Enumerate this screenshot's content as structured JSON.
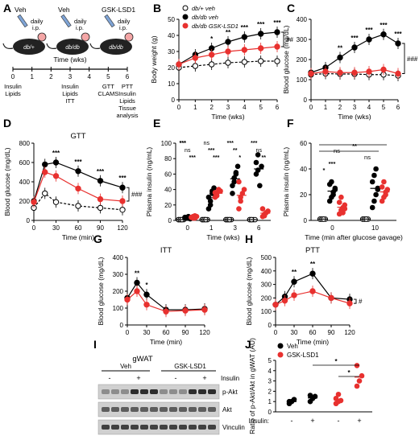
{
  "figure": {
    "panel_letters": [
      "A",
      "B",
      "C",
      "D",
      "E",
      "F",
      "G",
      "H",
      "I",
      "J"
    ],
    "colors": {
      "black": "#000000",
      "red": "#e8312f",
      "open": "#ffffff",
      "grey": "#888888"
    }
  },
  "panelA": {
    "mice": [
      {
        "label_top": "Veh",
        "injection": "daily i.p.",
        "body_label": "db/+"
      },
      {
        "label_top": "Veh",
        "injection": "daily i.p.",
        "body_label": "db/db"
      },
      {
        "label_top": "GSK-LSD1",
        "injection": "daily i.p.",
        "body_label": "db/db"
      }
    ],
    "timeline_title": "Time (wks)",
    "ticks": [
      "0",
      "1",
      "2",
      "3",
      "4",
      "5",
      "6"
    ],
    "events": [
      {
        "week": "0",
        "lines": [
          "Insulin",
          "Lipids"
        ]
      },
      {
        "week": "3",
        "lines": [
          "Insulin",
          "Lipids",
          "ITT"
        ]
      },
      {
        "week": "5",
        "lines": [
          "GTT",
          "CLAMS"
        ]
      },
      {
        "week": "6",
        "lines": [
          "PTT",
          "Insulin",
          "Lipids",
          "Tissue",
          "analysis"
        ]
      }
    ]
  },
  "chart_data": [
    {
      "panel": "B",
      "type": "line",
      "xlabel": "Time (wks)",
      "ylabel": "Body weight (g)",
      "xlim": [
        0,
        6
      ],
      "ylim": [
        0,
        50
      ],
      "xticks": [
        "0",
        "1",
        "2",
        "3",
        "4",
        "5",
        "6"
      ],
      "yticks": [
        "0",
        "10",
        "20",
        "30",
        "40",
        "50"
      ],
      "x": [
        0,
        1,
        2,
        3,
        4,
        5,
        6
      ],
      "legend": [
        "db/+ veh",
        "db/db veh",
        "db/db GSK-LSD1"
      ],
      "series": [
        {
          "name": "db/+ veh",
          "style": "open",
          "values": [
            20,
            21,
            22,
            23,
            23.5,
            24,
            24
          ]
        },
        {
          "name": "db/db veh",
          "style": "black",
          "values": [
            22,
            28,
            32,
            36,
            39,
            41,
            42
          ]
        },
        {
          "name": "db/db GSK-LSD1",
          "style": "red",
          "values": [
            22,
            26,
            28,
            30,
            31,
            32,
            33
          ]
        }
      ],
      "annotations": {
        "stars": [
          "*",
          "**",
          "***",
          "***",
          "***"
        ],
        "stars_x": [
          2,
          3,
          4,
          5,
          6
        ],
        "bracket": "##"
      }
    },
    {
      "panel": "C",
      "type": "line",
      "xlabel": "Time (wks)",
      "ylabel": "Blood glucose (mg/dL)",
      "xlim": [
        0,
        6
      ],
      "ylim": [
        0,
        400
      ],
      "xticks": [
        "0",
        "1",
        "2",
        "3",
        "4",
        "5",
        "6"
      ],
      "yticks": [
        "0",
        "100",
        "200",
        "300",
        "400"
      ],
      "x": [
        0,
        1,
        2,
        3,
        4,
        5,
        6
      ],
      "series": [
        {
          "style": "open",
          "values": [
            125,
            130,
            128,
            128,
            125,
            125,
            120
          ]
        },
        {
          "style": "black",
          "values": [
            135,
            160,
            210,
            260,
            300,
            325,
            280
          ]
        },
        {
          "style": "red",
          "values": [
            130,
            140,
            135,
            135,
            140,
            150,
            130
          ]
        }
      ],
      "annotations": {
        "stars": [
          "**",
          "***",
          "***",
          "***",
          "***"
        ],
        "stars_x": [
          2,
          3,
          4,
          5,
          6
        ],
        "bracket": "###"
      }
    },
    {
      "panel": "D",
      "type": "line",
      "title": "GTT",
      "xlabel": "Time (min)",
      "ylabel": "Blood glucose (mg/dL)",
      "xlim": [
        0,
        120
      ],
      "ylim": [
        0,
        800
      ],
      "xticks": [
        "0",
        "30",
        "60",
        "90",
        "120"
      ],
      "yticks": [
        "0",
        "200",
        "400",
        "600",
        "800"
      ],
      "x": [
        0,
        15,
        30,
        60,
        90,
        120
      ],
      "series": [
        {
          "style": "open",
          "values": [
            130,
            280,
            190,
            150,
            130,
            110
          ]
        },
        {
          "style": "black",
          "values": [
            200,
            580,
            600,
            510,
            410,
            340
          ]
        },
        {
          "style": "red",
          "values": [
            190,
            500,
            460,
            330,
            220,
            200
          ]
        }
      ],
      "annotations": {
        "stars": [
          "***",
          "***",
          "***",
          "***"
        ],
        "stars_x": [
          30,
          60,
          90,
          120
        ],
        "bracket": "###"
      }
    },
    {
      "panel": "E",
      "type": "scatter",
      "xlabel": "Time (wks)",
      "ylabel": "Plasma insulin (ng/mL)",
      "ylim": [
        0,
        100
      ],
      "yticks": [
        "0",
        "20",
        "40",
        "60",
        "80",
        "100"
      ],
      "categories": [
        "0",
        "1",
        "3",
        "6"
      ],
      "groups": [
        {
          "style": "open",
          "values": [
            [
              1,
              1,
              1,
              1,
              1,
              1,
              1
            ],
            [
              1,
              1,
              1,
              1,
              1,
              1,
              1
            ],
            [
              1,
              1,
              1,
              1,
              1,
              1,
              1
            ],
            [
              1,
              1,
              1,
              1,
              1,
              1
            ]
          ]
        },
        {
          "style": "black",
          "values": [
            [
              3,
              4,
              5,
              2,
              4,
              3,
              3
            ],
            [
              15,
              25,
              35,
              42,
              30,
              20,
              38
            ],
            [
              45,
              55,
              60,
              70,
              35,
              50,
              62
            ],
            [
              60,
              85,
              45,
              70,
              75,
              65
            ]
          ]
        },
        {
          "style": "red",
          "values": [
            [
              4,
              3,
              6,
              5,
              4,
              5,
              3
            ],
            [
              30,
              35,
              40,
              38,
              36,
              32
            ],
            [
              15,
              25,
              35,
              40,
              50,
              30
            ],
            [
              5,
              8,
              10,
              12,
              15,
              6
            ]
          ]
        }
      ],
      "annotations": {
        "labels": [
          "***",
          "ns",
          "***",
          "***",
          "***",
          "***",
          "ns",
          "**",
          "*",
          "***",
          "ns",
          "**",
          "***"
        ]
      }
    },
    {
      "panel": "F",
      "type": "scatter",
      "xlabel": "Time (min after glucose gavage)",
      "ylabel": "Plasma insulin (ng/mL)",
      "ylim": [
        0,
        60
      ],
      "yticks": [
        "0",
        "20",
        "40",
        "60"
      ],
      "categories": [
        "0",
        "10"
      ],
      "groups": [
        {
          "style": "open",
          "values": [
            [
              1,
              1,
              1,
              1,
              1,
              1,
              1
            ],
            [
              1,
              1,
              1,
              1,
              1,
              1,
              1
            ]
          ]
        },
        {
          "style": "black",
          "values": [
            [
              15,
              18,
              22,
              25,
              28,
              30,
              20,
              24
            ],
            [
              10,
              15,
              20,
              25,
              30,
              35,
              40,
              24
            ]
          ]
        },
        {
          "style": "red",
          "values": [
            [
              5,
              8,
              10,
              12,
              14,
              18,
              6,
              9
            ],
            [
              15,
              18,
              20,
              24,
              26,
              30,
              22
            ]
          ]
        }
      ],
      "annotations": {
        "labels": [
          "*",
          "***",
          "ns",
          "ns",
          "**"
        ]
      }
    },
    {
      "panel": "G",
      "type": "line",
      "title": "ITT",
      "xlabel": "Time (min)",
      "ylabel": "Blood glucose (mg/dL)",
      "xlim": [
        0,
        120
      ],
      "ylim": [
        0,
        400
      ],
      "xticks": [
        "0",
        "30",
        "60",
        "90",
        "120"
      ],
      "yticks": [
        "0",
        "100",
        "200",
        "300",
        "400"
      ],
      "x": [
        0,
        15,
        30,
        60,
        90,
        120
      ],
      "series": [
        {
          "style": "black",
          "values": [
            160,
            250,
            180,
            90,
            90,
            95
          ]
        },
        {
          "style": "red",
          "values": [
            150,
            200,
            120,
            80,
            85,
            90
          ]
        }
      ],
      "annotations": {
        "stars": [
          "**",
          "*"
        ],
        "stars_x": [
          15,
          30
        ]
      }
    },
    {
      "panel": "H",
      "type": "line",
      "title": "PTT",
      "xlabel": "Time (min)",
      "ylabel": "Blood glucose (mg/dL)",
      "xlim": [
        0,
        120
      ],
      "ylim": [
        0,
        500
      ],
      "xticks": [
        "0",
        "30",
        "60",
        "90",
        "120"
      ],
      "yticks": [
        "0",
        "100",
        "200",
        "300",
        "400",
        "500"
      ],
      "x": [
        0,
        15,
        30,
        60,
        90,
        120
      ],
      "series": [
        {
          "style": "black",
          "values": [
            150,
            210,
            320,
            380,
            200,
            190
          ]
        },
        {
          "style": "red",
          "values": [
            150,
            180,
            220,
            250,
            200,
            160
          ]
        }
      ],
      "annotations": {
        "stars": [
          "**",
          "**"
        ],
        "stars_x": [
          30,
          60
        ],
        "bracket": "#"
      }
    },
    {
      "panel": "J",
      "type": "scatter",
      "ylabel": "Ratio of p-Akt/Akt in gWAT (AU)",
      "ylim": [
        0,
        5
      ],
      "yticks": [
        "0",
        "1",
        "2",
        "3",
        "4",
        "5"
      ],
      "legend": [
        "Veh",
        "GSK-LSD1"
      ],
      "row_label": "Insulin:",
      "categories": [
        "-",
        "+",
        "-",
        "+"
      ],
      "groups": [
        {
          "style": "black",
          "values": [
            [
              0.8,
              1.0,
              1.2,
              1.0
            ],
            [
              1.0,
              1.3,
              1.5,
              1.6
            ]
          ]
        },
        {
          "style": "red",
          "values": [
            [
              0.8,
              1.0,
              1.1,
              1.3,
              1.7
            ],
            [
              2.5,
              3.0,
              3.5,
              4.5
            ]
          ]
        }
      ],
      "annotations": {
        "labels": [
          "*",
          "*"
        ]
      }
    }
  ],
  "panelI": {
    "title": "gWAT",
    "groups": [
      "Veh",
      "GSK-LSD1"
    ],
    "row_label": "Insulin",
    "insulin_marks": [
      "-",
      "+",
      "-",
      "+"
    ],
    "bands": [
      "p-Akt",
      "Akt",
      "Vinculin"
    ]
  }
}
